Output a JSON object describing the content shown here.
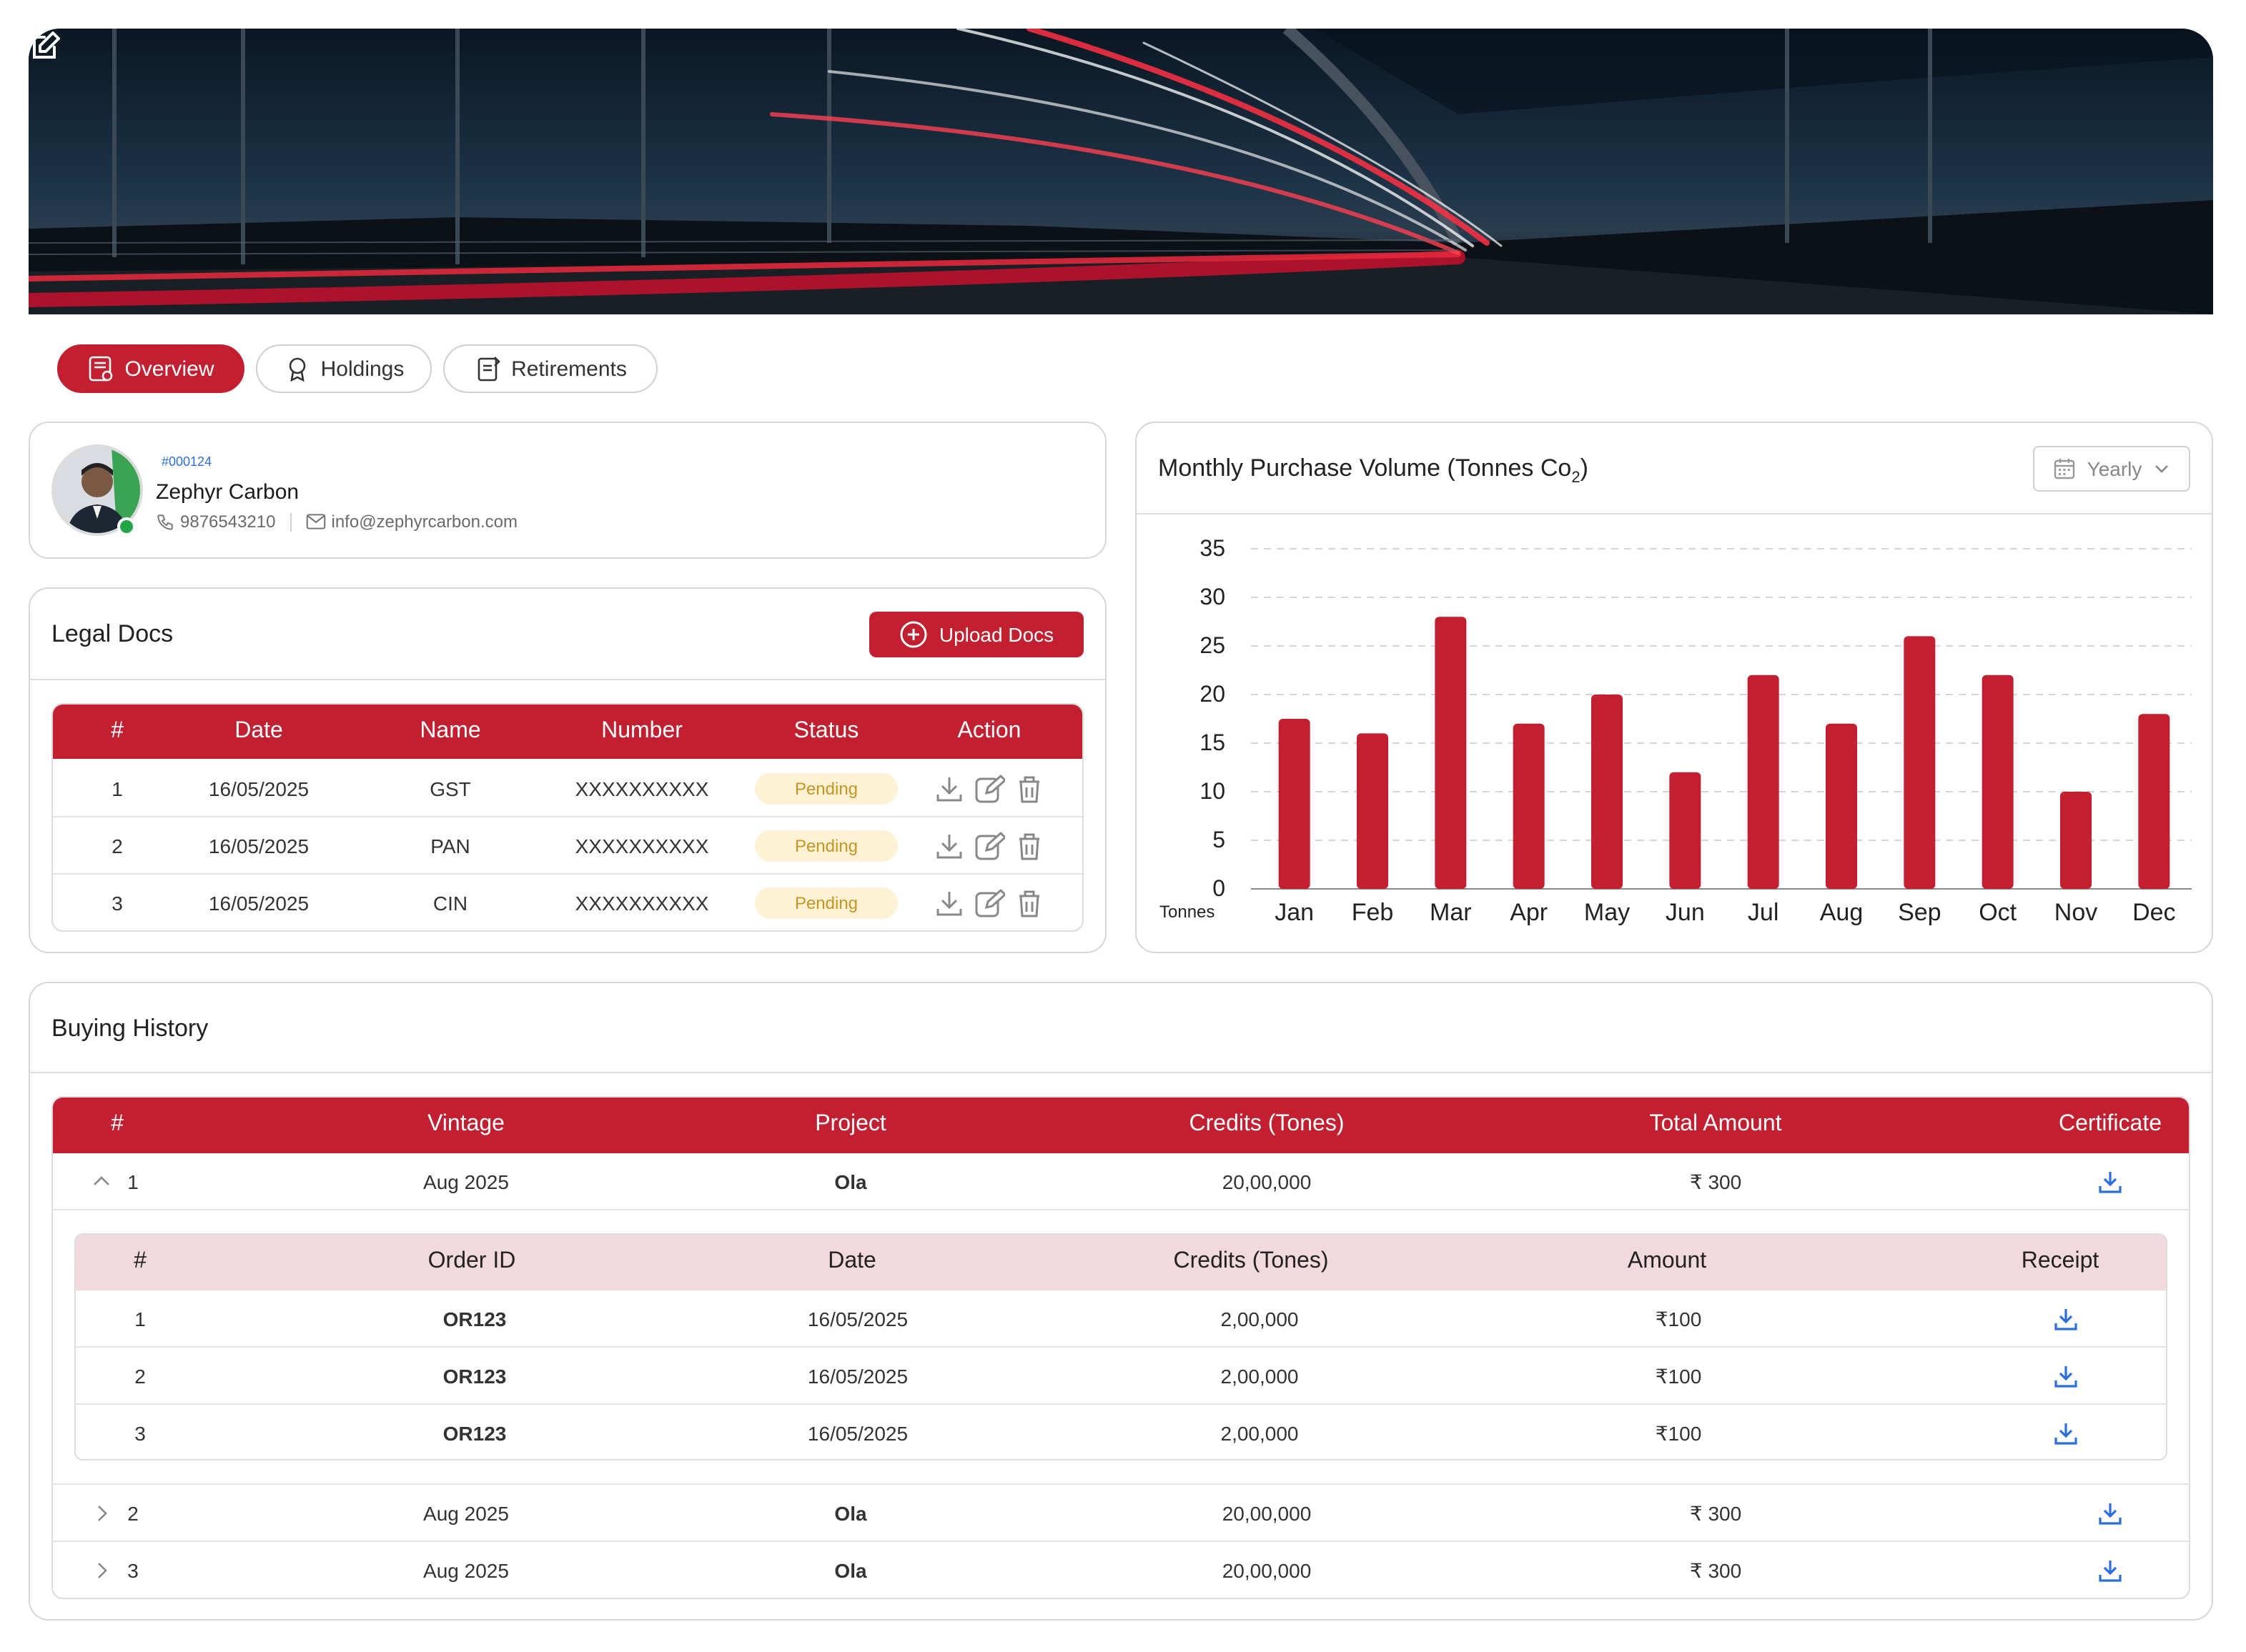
{
  "tabs": [
    {
      "label": "Overview",
      "active": true
    },
    {
      "label": "Holdings",
      "active": false
    },
    {
      "label": "Retirements",
      "active": false
    }
  ],
  "profile": {
    "id": "#000124",
    "name": "Zephyr Carbon",
    "phone": "9876543210",
    "email": "info@zephyrcarbon.com"
  },
  "legal_docs": {
    "title": "Legal Docs",
    "upload_label": "Upload Docs",
    "columns": [
      "#",
      "Date",
      "Name",
      "Number",
      "Status",
      "Action"
    ],
    "rows": [
      {
        "num": "1",
        "date": "16/05/2025",
        "name": "GST",
        "number": "XXXXXXXXXX",
        "status": "Pending"
      },
      {
        "num": "2",
        "date": "16/05/2025",
        "name": "PAN",
        "number": "XXXXXXXXXX",
        "status": "Pending"
      },
      {
        "num": "3",
        "date": "16/05/2025",
        "name": "CIN",
        "number": "XXXXXXXXXX",
        "status": "Pending"
      }
    ]
  },
  "chart_card": {
    "title": "Monthly Purchase Volume (Tonnes Co",
    "title_sub": "2",
    "title_end": ")",
    "period_label": "Yearly"
  },
  "chart_data": {
    "type": "bar",
    "title": "Monthly Purchase Volume (Tonnes Co2)",
    "categories": [
      "Jan",
      "Feb",
      "Mar",
      "Apr",
      "May",
      "Jun",
      "Jul",
      "Aug",
      "Sep",
      "Oct",
      "Nov",
      "Dec"
    ],
    "values": [
      17.5,
      16,
      28,
      17,
      20,
      12,
      22,
      17,
      26,
      22,
      10,
      18
    ],
    "ylabel": "Tonnes",
    "ylim": [
      0,
      35
    ],
    "yticks": [
      0,
      5,
      10,
      15,
      20,
      25,
      30,
      35
    ],
    "grid": true,
    "bar_color": "#c21f30"
  },
  "buying_history": {
    "title": "Buying History",
    "columns": [
      "#",
      "Vintage",
      "Project",
      "Credits (Tones)",
      "Total Amount",
      "Certificate"
    ],
    "rows": [
      {
        "num": "1",
        "vintage": "Aug 2025",
        "project": "Ola",
        "credits": "20,00,000",
        "amount": "₹ 300",
        "expanded": true
      },
      {
        "num": "2",
        "vintage": "Aug 2025",
        "project": "Ola",
        "credits": "20,00,000",
        "amount": "₹ 300",
        "expanded": false
      },
      {
        "num": "3",
        "vintage": "Aug 2025",
        "project": "Ola",
        "credits": "20,00,000",
        "amount": "₹ 300",
        "expanded": false
      }
    ],
    "sub_columns": [
      "#",
      "Order ID",
      "Date",
      "Credits (Tones)",
      "Amount",
      "Receipt"
    ],
    "sub_rows": [
      {
        "num": "1",
        "order_id": "OR123",
        "date": "16/05/2025",
        "credits": "2,00,000",
        "amount": "₹100"
      },
      {
        "num": "2",
        "order_id": "OR123",
        "date": "16/05/2025",
        "credits": "2,00,000",
        "amount": "₹100"
      },
      {
        "num": "3",
        "order_id": "OR123",
        "date": "16/05/2025",
        "credits": "2,00,000",
        "amount": "₹100"
      }
    ]
  },
  "colors": {
    "brand": "#c21f30",
    "pending_bg": "#fdf2d6",
    "pending_text": "#c99520",
    "link_blue": "#2d6fd8",
    "sub_header_bg": "#f1d9de"
  }
}
